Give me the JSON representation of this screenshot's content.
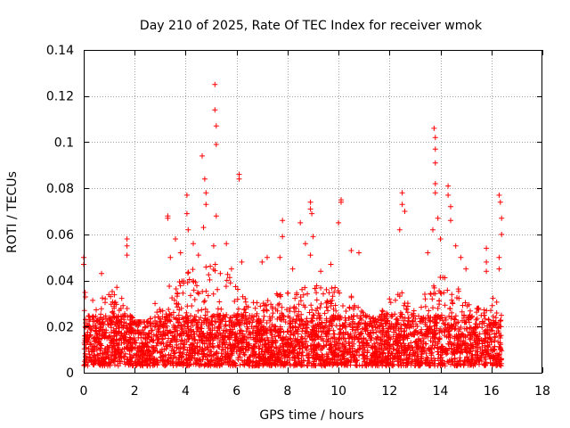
{
  "chart_data": {
    "type": "scatter",
    "title": "Day 210 of 2025, Rate Of TEC Index for receiver wmok",
    "xlabel": "GPS time / hours",
    "ylabel": "ROTI / TECUs",
    "xlim": [
      0,
      18
    ],
    "ylim": [
      0,
      0.14
    ],
    "xticks": [
      "0",
      "2",
      "4",
      "6",
      "8",
      "10",
      "12",
      "14",
      "16",
      "18"
    ],
    "yticks": [
      "0",
      "0.02",
      "0.04",
      "0.06",
      "0.08",
      "0.1",
      "0.12",
      "0.14"
    ],
    "grid": true,
    "marker": "+",
    "color": "#ff0000",
    "data_range_hours": [
      0,
      16.4
    ],
    "baseline_roti": [
      0.003,
      0.025
    ],
    "peaks": [
      {
        "x": 0.0,
        "y": 0.05
      },
      {
        "x": 0.0,
        "y": 0.047
      },
      {
        "x": 0.7,
        "y": 0.043
      },
      {
        "x": 1.3,
        "y": 0.037
      },
      {
        "x": 1.7,
        "y": 0.058
      },
      {
        "x": 1.7,
        "y": 0.055
      },
      {
        "x": 1.7,
        "y": 0.051
      },
      {
        "x": 2.8,
        "y": 0.03
      },
      {
        "x": 3.3,
        "y": 0.068
      },
      {
        "x": 3.3,
        "y": 0.067
      },
      {
        "x": 3.4,
        "y": 0.05
      },
      {
        "x": 3.6,
        "y": 0.058
      },
      {
        "x": 3.8,
        "y": 0.052
      },
      {
        "x": 4.05,
        "y": 0.077
      },
      {
        "x": 4.05,
        "y": 0.069
      },
      {
        "x": 4.1,
        "y": 0.062
      },
      {
        "x": 4.3,
        "y": 0.056
      },
      {
        "x": 4.5,
        "y": 0.051
      },
      {
        "x": 4.65,
        "y": 0.094
      },
      {
        "x": 4.75,
        "y": 0.084
      },
      {
        "x": 4.8,
        "y": 0.078
      },
      {
        "x": 4.8,
        "y": 0.073
      },
      {
        "x": 4.7,
        "y": 0.063
      },
      {
        "x": 5.15,
        "y": 0.125
      },
      {
        "x": 5.15,
        "y": 0.114
      },
      {
        "x": 5.2,
        "y": 0.107
      },
      {
        "x": 5.2,
        "y": 0.099
      },
      {
        "x": 5.2,
        "y": 0.068
      },
      {
        "x": 5.1,
        "y": 0.055
      },
      {
        "x": 5.6,
        "y": 0.056
      },
      {
        "x": 5.8,
        "y": 0.045
      },
      {
        "x": 6.1,
        "y": 0.086
      },
      {
        "x": 6.1,
        "y": 0.084
      },
      {
        "x": 6.2,
        "y": 0.048
      },
      {
        "x": 7.0,
        "y": 0.048
      },
      {
        "x": 7.2,
        "y": 0.05
      },
      {
        "x": 7.8,
        "y": 0.066
      },
      {
        "x": 7.8,
        "y": 0.059
      },
      {
        "x": 7.7,
        "y": 0.05
      },
      {
        "x": 8.2,
        "y": 0.045
      },
      {
        "x": 8.5,
        "y": 0.065
      },
      {
        "x": 8.7,
        "y": 0.056
      },
      {
        "x": 8.9,
        "y": 0.074
      },
      {
        "x": 8.9,
        "y": 0.071
      },
      {
        "x": 8.95,
        "y": 0.069
      },
      {
        "x": 9.0,
        "y": 0.059
      },
      {
        "x": 8.9,
        "y": 0.051
      },
      {
        "x": 9.3,
        "y": 0.044
      },
      {
        "x": 9.7,
        "y": 0.047
      },
      {
        "x": 10.0,
        "y": 0.065
      },
      {
        "x": 10.1,
        "y": 0.075
      },
      {
        "x": 10.1,
        "y": 0.074
      },
      {
        "x": 10.5,
        "y": 0.053
      },
      {
        "x": 10.8,
        "y": 0.052
      },
      {
        "x": 12.0,
        "y": 0.032
      },
      {
        "x": 12.4,
        "y": 0.062
      },
      {
        "x": 12.5,
        "y": 0.078
      },
      {
        "x": 12.5,
        "y": 0.073
      },
      {
        "x": 12.6,
        "y": 0.07
      },
      {
        "x": 13.5,
        "y": 0.052
      },
      {
        "x": 13.75,
        "y": 0.106
      },
      {
        "x": 13.8,
        "y": 0.102
      },
      {
        "x": 13.8,
        "y": 0.097
      },
      {
        "x": 13.8,
        "y": 0.091
      },
      {
        "x": 13.8,
        "y": 0.082
      },
      {
        "x": 13.8,
        "y": 0.078
      },
      {
        "x": 13.9,
        "y": 0.067
      },
      {
        "x": 13.7,
        "y": 0.062
      },
      {
        "x": 14.0,
        "y": 0.058
      },
      {
        "x": 14.3,
        "y": 0.081
      },
      {
        "x": 14.3,
        "y": 0.077
      },
      {
        "x": 14.4,
        "y": 0.072
      },
      {
        "x": 14.4,
        "y": 0.066
      },
      {
        "x": 14.6,
        "y": 0.055
      },
      {
        "x": 14.8,
        "y": 0.05
      },
      {
        "x": 15.0,
        "y": 0.045
      },
      {
        "x": 15.8,
        "y": 0.054
      },
      {
        "x": 15.8,
        "y": 0.048
      },
      {
        "x": 15.8,
        "y": 0.044
      },
      {
        "x": 16.3,
        "y": 0.077
      },
      {
        "x": 16.35,
        "y": 0.074
      },
      {
        "x": 16.4,
        "y": 0.067
      },
      {
        "x": 16.4,
        "y": 0.06
      },
      {
        "x": 16.3,
        "y": 0.05
      },
      {
        "x": 16.3,
        "y": 0.045
      }
    ],
    "activity_envelope": [
      {
        "x": 0.0,
        "y": 0.036
      },
      {
        "x": 0.5,
        "y": 0.03
      },
      {
        "x": 1.0,
        "y": 0.036
      },
      {
        "x": 1.5,
        "y": 0.034
      },
      {
        "x": 2.0,
        "y": 0.022
      },
      {
        "x": 2.5,
        "y": 0.022
      },
      {
        "x": 3.0,
        "y": 0.028
      },
      {
        "x": 3.5,
        "y": 0.042
      },
      {
        "x": 4.0,
        "y": 0.046
      },
      {
        "x": 4.5,
        "y": 0.045
      },
      {
        "x": 5.0,
        "y": 0.05
      },
      {
        "x": 5.5,
        "y": 0.044
      },
      {
        "x": 6.0,
        "y": 0.04
      },
      {
        "x": 6.5,
        "y": 0.03
      },
      {
        "x": 7.0,
        "y": 0.032
      },
      {
        "x": 7.5,
        "y": 0.034
      },
      {
        "x": 8.0,
        "y": 0.036
      },
      {
        "x": 8.5,
        "y": 0.036
      },
      {
        "x": 9.0,
        "y": 0.04
      },
      {
        "x": 9.5,
        "y": 0.036
      },
      {
        "x": 10.0,
        "y": 0.038
      },
      {
        "x": 10.5,
        "y": 0.036
      },
      {
        "x": 11.0,
        "y": 0.028
      },
      {
        "x": 11.5,
        "y": 0.026
      },
      {
        "x": 12.0,
        "y": 0.03
      },
      {
        "x": 12.5,
        "y": 0.036
      },
      {
        "x": 13.0,
        "y": 0.03
      },
      {
        "x": 13.5,
        "y": 0.038
      },
      {
        "x": 14.0,
        "y": 0.042
      },
      {
        "x": 14.5,
        "y": 0.04
      },
      {
        "x": 15.0,
        "y": 0.032
      },
      {
        "x": 15.5,
        "y": 0.028
      },
      {
        "x": 16.0,
        "y": 0.032
      },
      {
        "x": 16.4,
        "y": 0.036
      }
    ]
  }
}
